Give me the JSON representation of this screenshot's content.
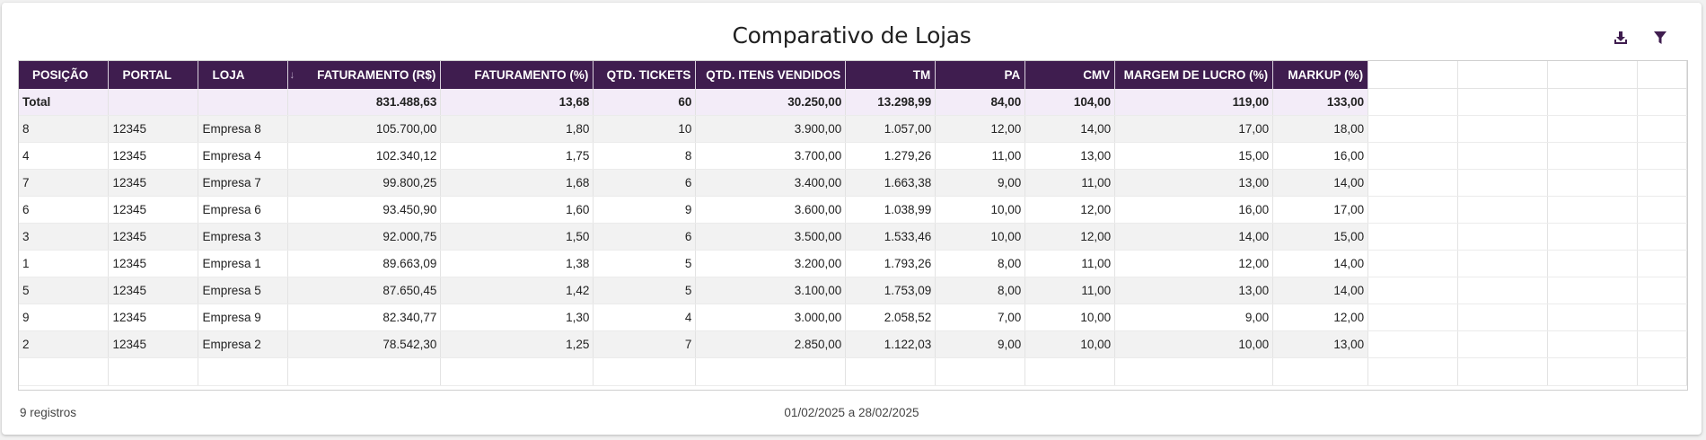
{
  "title": "Comparativo de Lojas",
  "accent_color": "#3f1d4f",
  "toolbar": {
    "download_icon": "download-icon",
    "filter_icon": "filter-icon"
  },
  "table": {
    "columns": [
      "POSIÇÃO",
      "PORTAL",
      "LOJA",
      "FATURAMENTO (R$)",
      "FATURAMENTO (%)",
      "QTD. TICKETS",
      "QTD. ITENS VENDIDOS",
      "TM",
      "PA",
      "CMV",
      "MARGEM DE LUCRO (%)",
      "MARKUP (%)"
    ],
    "sorted_column_icon": "sort-down-arrow-icon",
    "total": [
      "Total",
      "",
      "",
      "831.488,63",
      "13,68",
      "60",
      "30.250,00",
      "13.298,99",
      "84,00",
      "104,00",
      "119,00",
      "133,00"
    ],
    "rows": [
      [
        "8",
        "12345",
        "Empresa 8",
        "105.700,00",
        "1,80",
        "10",
        "3.900,00",
        "1.057,00",
        "12,00",
        "14,00",
        "17,00",
        "18,00"
      ],
      [
        "4",
        "12345",
        "Empresa 4",
        "102.340,12",
        "1,75",
        "8",
        "3.700,00",
        "1.279,26",
        "11,00",
        "13,00",
        "15,00",
        "16,00"
      ],
      [
        "7",
        "12345",
        "Empresa 7",
        "99.800,25",
        "1,68",
        "6",
        "3.400,00",
        "1.663,38",
        "9,00",
        "11,00",
        "13,00",
        "14,00"
      ],
      [
        "6",
        "12345",
        "Empresa 6",
        "93.450,90",
        "1,60",
        "9",
        "3.600,00",
        "1.038,99",
        "10,00",
        "12,00",
        "16,00",
        "17,00"
      ],
      [
        "3",
        "12345",
        "Empresa 3",
        "92.000,75",
        "1,50",
        "6",
        "3.500,00",
        "1.533,46",
        "10,00",
        "12,00",
        "14,00",
        "15,00"
      ],
      [
        "1",
        "12345",
        "Empresa 1",
        "89.663,09",
        "1,38",
        "5",
        "3.200,00",
        "1.793,26",
        "8,00",
        "11,00",
        "12,00",
        "14,00"
      ],
      [
        "5",
        "12345",
        "Empresa 5",
        "87.650,45",
        "1,42",
        "5",
        "3.100,00",
        "1.753,09",
        "8,00",
        "11,00",
        "13,00",
        "14,00"
      ],
      [
        "9",
        "12345",
        "Empresa 9",
        "82.340,77",
        "1,30",
        "4",
        "3.000,00",
        "2.058,52",
        "7,00",
        "10,00",
        "9,00",
        "12,00"
      ],
      [
        "2",
        "12345",
        "Empresa 2",
        "78.542,30",
        "1,25",
        "7",
        "2.850,00",
        "1.122,03",
        "9,00",
        "10,00",
        "10,00",
        "13,00"
      ]
    ]
  },
  "footer": {
    "records": "9 registros",
    "date_range": "01/02/2025 a 28/02/2025"
  }
}
